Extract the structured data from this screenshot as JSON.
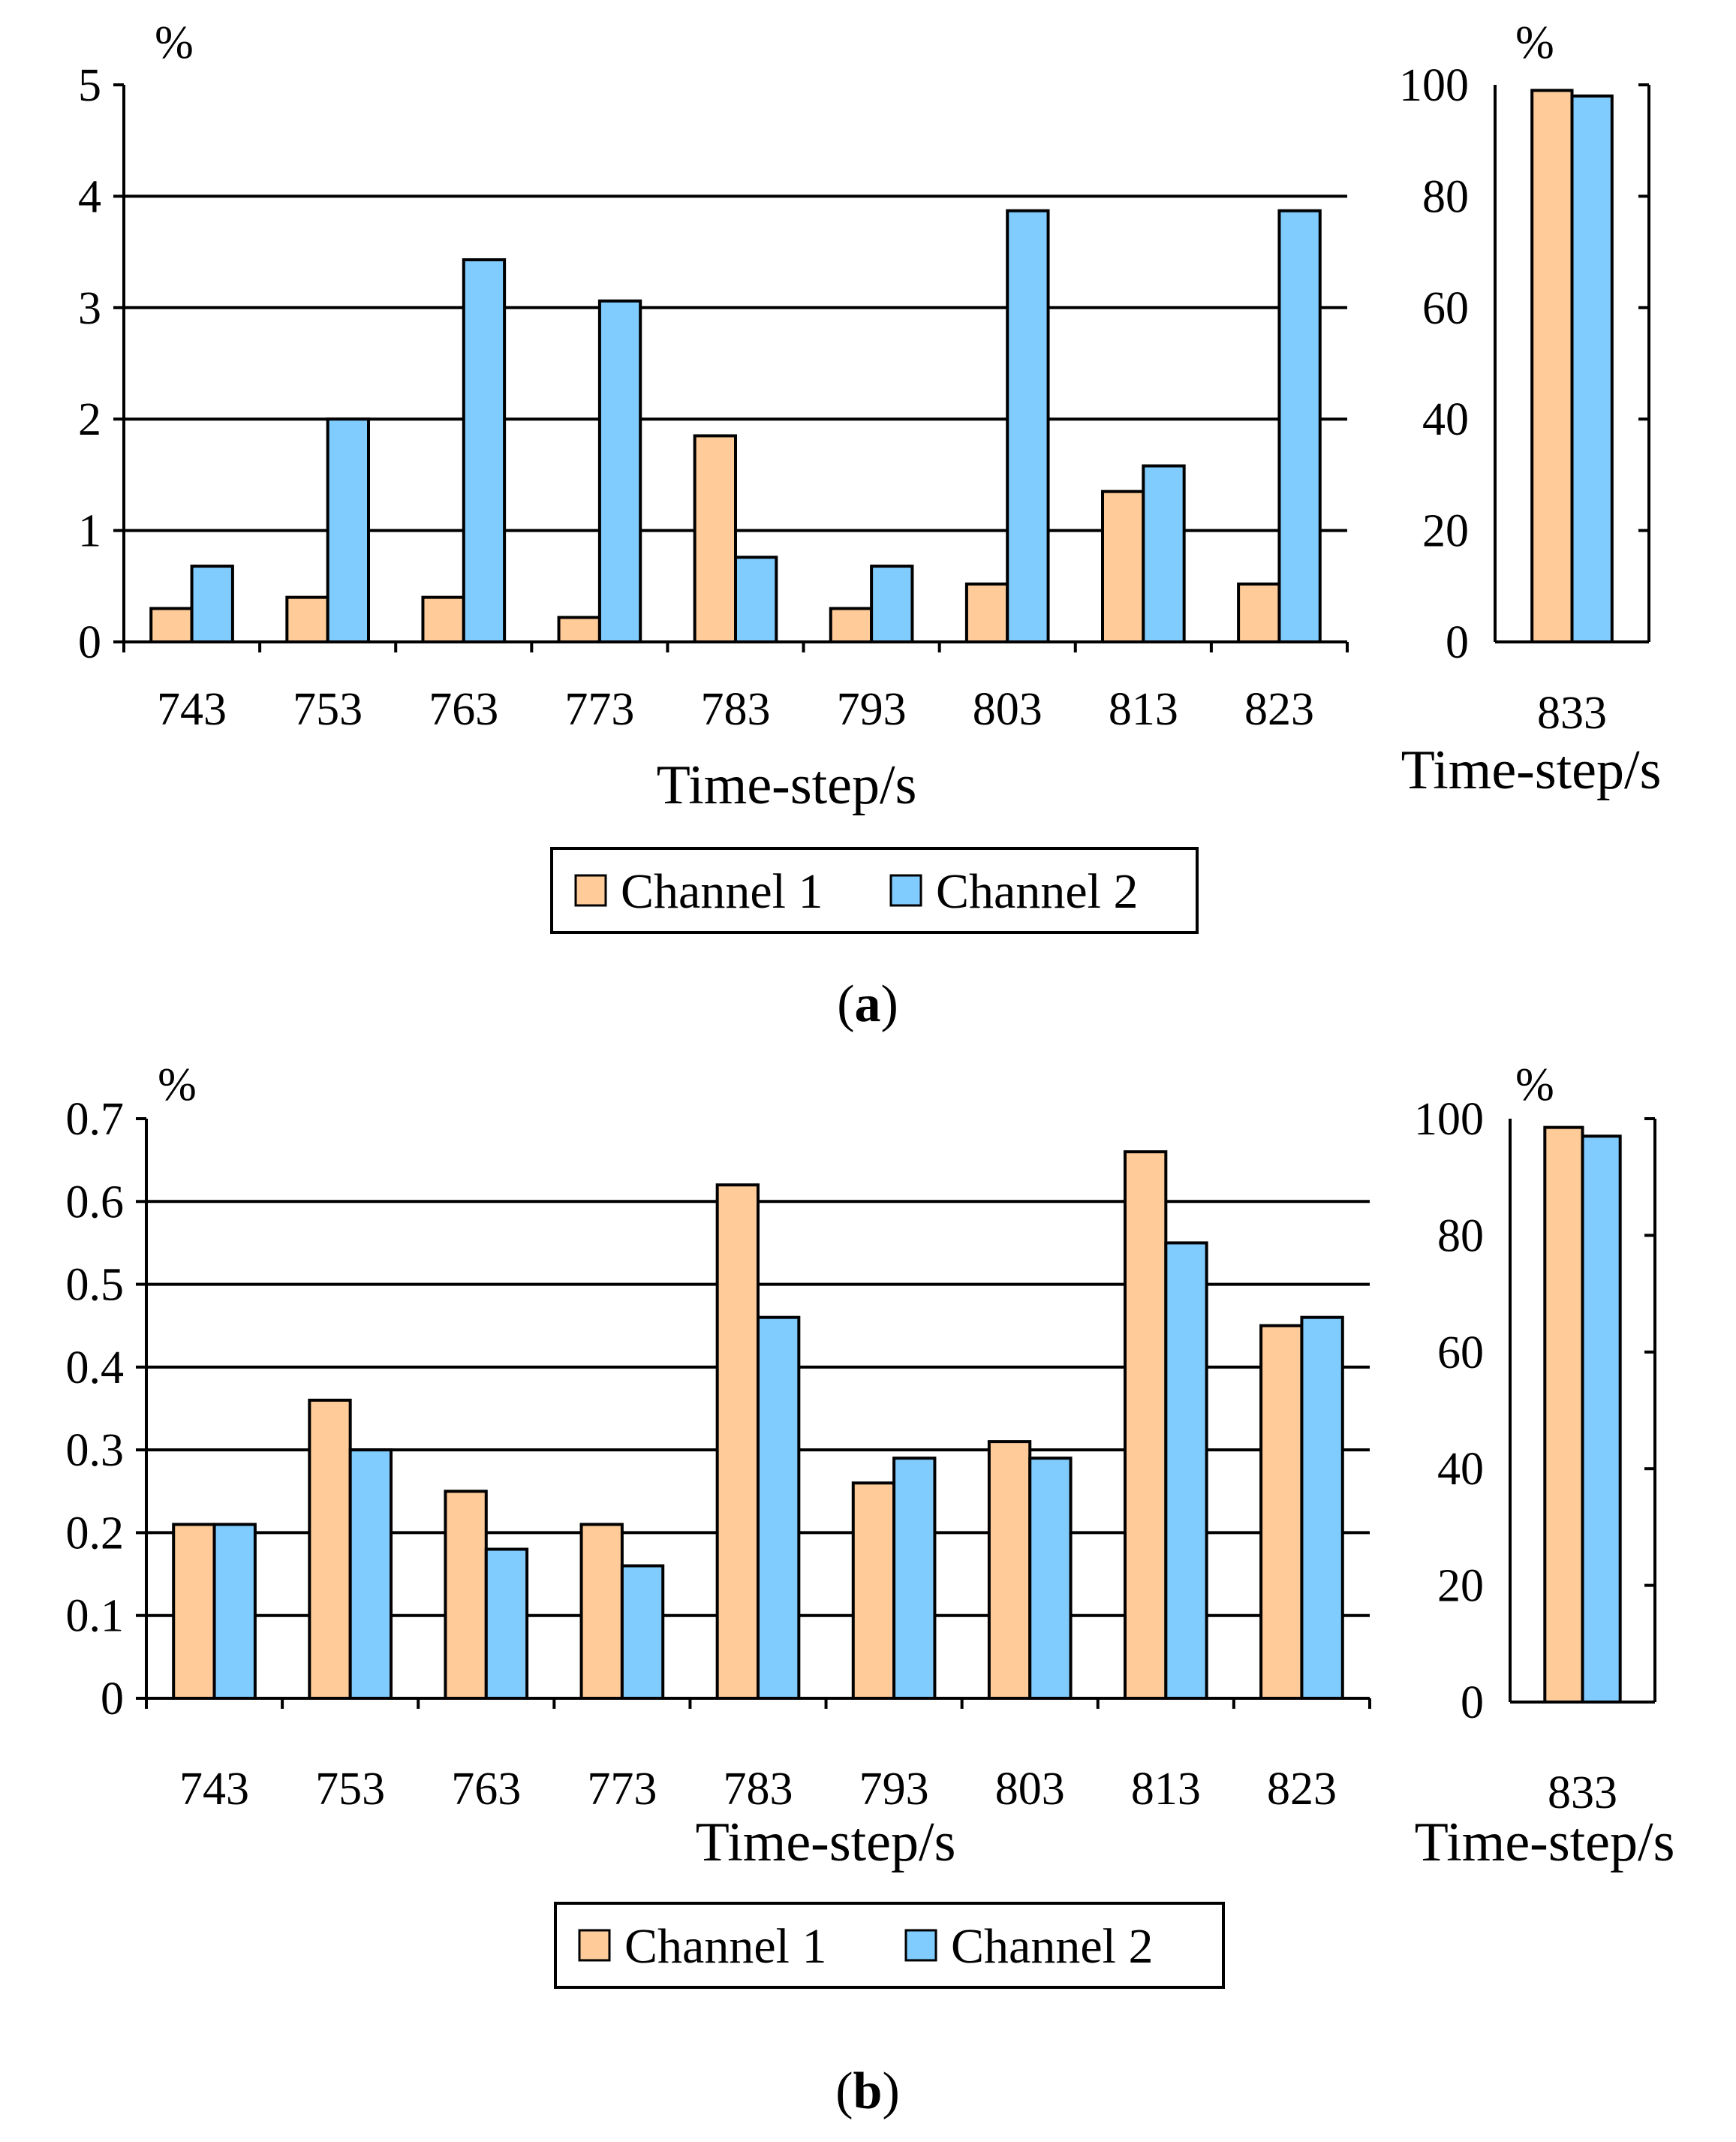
{
  "colors": {
    "channel1": "#FFCC99",
    "channel2": "#80CCFF",
    "axis": "#000000"
  },
  "chart_data": [
    {
      "type": "bar",
      "panel": "a",
      "caption_open": "(",
      "caption_letter": "a",
      "caption_close": ")",
      "main": {
        "categories": [
          "743",
          "753",
          "763",
          "773",
          "783",
          "793",
          "803",
          "813",
          "823"
        ],
        "ylabel": "%",
        "xlabel": "Time-step/s",
        "ylim": [
          0,
          5
        ],
        "yticks": [
          "0",
          "1",
          "2",
          "3",
          "4",
          "5"
        ],
        "gridlines": [
          1,
          2,
          3,
          4
        ],
        "series": [
          {
            "name": "Channel 1",
            "values": [
              0.3,
              0.4,
              0.4,
              0.22,
              1.85,
              0.3,
              0.52,
              1.35,
              0.52
            ]
          },
          {
            "name": "Channel 2",
            "values": [
              0.68,
              2.0,
              3.43,
              3.06,
              0.76,
              0.68,
              3.87,
              1.58,
              3.87
            ]
          }
        ]
      },
      "inset": {
        "categories": [
          "833"
        ],
        "ylabel": "%",
        "xlabel": "Time-step/s",
        "ylim": [
          0,
          100
        ],
        "yticks": [
          "0",
          "20",
          "40",
          "60",
          "80",
          "100"
        ],
        "series": [
          {
            "name": "Channel 1",
            "values": [
              99
            ]
          },
          {
            "name": "Channel 2",
            "values": [
              98
            ]
          }
        ]
      },
      "legend": [
        "Channel 1",
        "Channel 2"
      ]
    },
    {
      "type": "bar",
      "panel": "b",
      "caption_open": "(",
      "caption_letter": "b",
      "caption_close": ")",
      "main": {
        "categories": [
          "743",
          "753",
          "763",
          "773",
          "783",
          "793",
          "803",
          "813",
          "823"
        ],
        "ylabel": "%",
        "xlabel": "Time-step/s",
        "ylim": [
          0,
          0.7
        ],
        "yticks": [
          "0",
          "0.1",
          "0.2",
          "0.3",
          "0.4",
          "0.5",
          "0.6",
          "0.7"
        ],
        "gridlines": [
          0.1,
          0.2,
          0.3,
          0.4,
          0.5,
          0.6
        ],
        "series": [
          {
            "name": "Channel 1",
            "values": [
              0.21,
              0.36,
              0.25,
              0.21,
              0.62,
              0.26,
              0.31,
              0.66,
              0.45
            ]
          },
          {
            "name": "Channel 2",
            "values": [
              0.21,
              0.3,
              0.18,
              0.16,
              0.46,
              0.29,
              0.29,
              0.55,
              0.46
            ]
          }
        ]
      },
      "inset": {
        "categories": [
          "833"
        ],
        "ylabel": "%",
        "xlabel": "Time-step/s",
        "ylim": [
          0,
          100
        ],
        "yticks": [
          "0",
          "20",
          "40",
          "60",
          "80",
          "100"
        ],
        "series": [
          {
            "name": "Channel 1",
            "values": [
              98.5
            ]
          },
          {
            "name": "Channel 2",
            "values": [
              97
            ]
          }
        ]
      },
      "legend": [
        "Channel 1",
        "Channel 2"
      ]
    }
  ]
}
